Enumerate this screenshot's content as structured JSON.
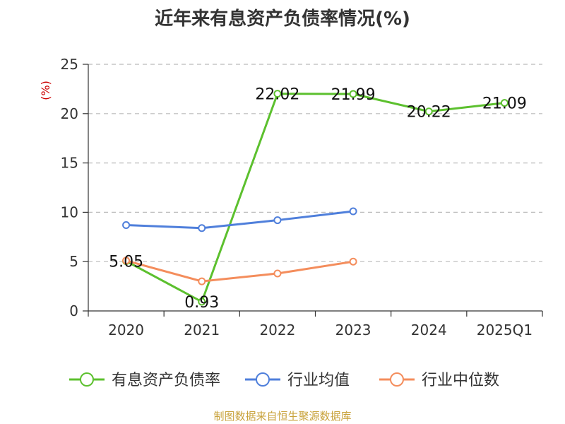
{
  "title": "近年来有息资产负债率情况(%)",
  "source": "制图数据来自恒生聚源数据库",
  "chart_data": {
    "type": "line",
    "title": "近年来有息资产负债率情况(%)",
    "ylabel": "(%)",
    "xlabel": "",
    "ylim": [
      0,
      25
    ],
    "yticks": [
      0,
      5,
      10,
      15,
      20,
      25
    ],
    "categories": [
      "2020",
      "2021",
      "2022",
      "2023",
      "2024",
      "2025Q1"
    ],
    "grid": true,
    "legend_position": "bottom",
    "series": [
      {
        "name": "有息资产负债率",
        "color": "#5cc02e",
        "values": [
          5.05,
          0.93,
          22.02,
          21.99,
          20.22,
          21.09
        ],
        "labels": [
          "5.05",
          "0.93",
          "22.02",
          "21.99",
          "20.22",
          "21.09"
        ]
      },
      {
        "name": "行业均值",
        "color": "#4f7fdb",
        "values": [
          8.7,
          8.4,
          9.2,
          10.1,
          null,
          null
        ]
      },
      {
        "name": "行业中位数",
        "color": "#f48d5c",
        "values": [
          5.1,
          3.0,
          3.8,
          5.0,
          null,
          null
        ]
      }
    ]
  }
}
